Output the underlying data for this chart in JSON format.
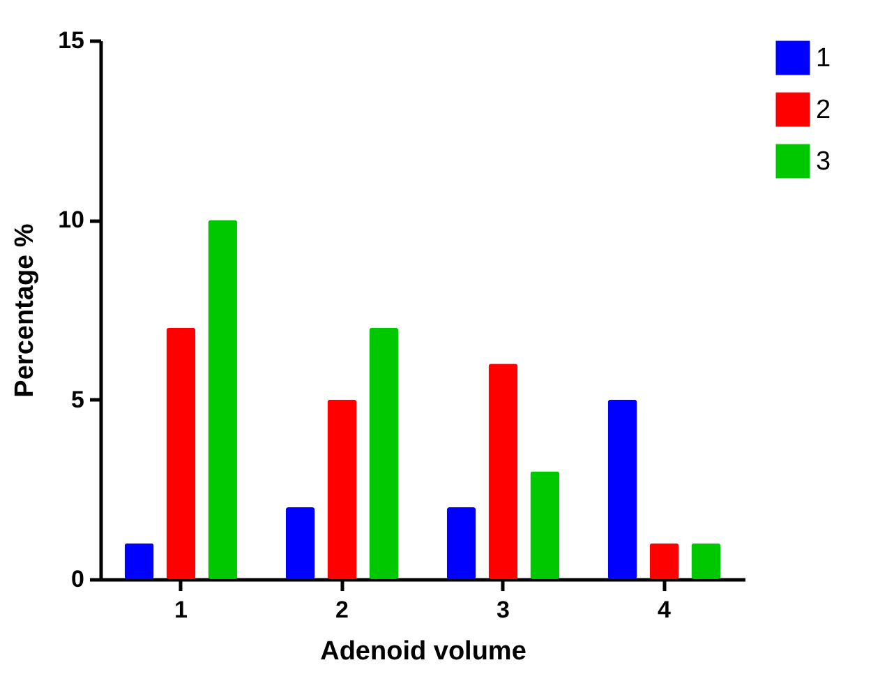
{
  "chart_data": {
    "type": "bar",
    "xlabel": "Adenoid volume",
    "ylabel": "Percentage %",
    "categories": [
      "1",
      "2",
      "3",
      "4"
    ],
    "series": [
      {
        "name": "1",
        "color": "#0000ff",
        "values": [
          1,
          2,
          2,
          5
        ]
      },
      {
        "name": "2",
        "color": "#ff0000",
        "values": [
          7,
          5,
          6,
          1
        ]
      },
      {
        "name": "3",
        "color": "#00c800",
        "values": [
          10,
          7,
          3,
          1
        ]
      }
    ],
    "ylim": [
      0,
      15
    ],
    "yticks": [
      0,
      5,
      10,
      15
    ],
    "grid": false,
    "legend": "top right"
  }
}
